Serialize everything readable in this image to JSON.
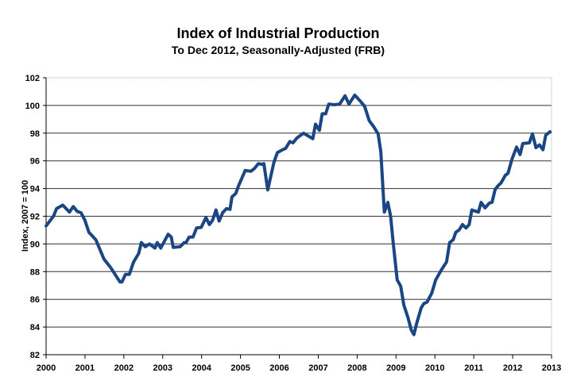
{
  "chart_data": {
    "type": "line",
    "title": "Index of Industrial Production",
    "subtitle": "To Dec 2012, Seasonally-Adjusted (FRB)",
    "xlabel": "",
    "ylabel": "Index, 2007 = 100",
    "xlim": [
      2000,
      2013
    ],
    "ylim": [
      82,
      102
    ],
    "grid": true,
    "line_color": "#1b4684",
    "xticks": [
      "2000",
      "2001",
      "2002",
      "2003",
      "2004",
      "2005",
      "2006",
      "2007",
      "2008",
      "2009",
      "2010",
      "2011",
      "2012",
      "2013"
    ],
    "yticks": [
      "82",
      "84",
      "86",
      "88",
      "90",
      "92",
      "94",
      "96",
      "98",
      "100",
      "102"
    ],
    "series": [
      {
        "name": "Index of Industrial Production",
        "x": [
          2000.0,
          2000.19,
          2000.27,
          2000.43,
          2000.6,
          2000.7,
          2000.8,
          2000.9,
          2001.0,
          2001.1,
          2001.28,
          2001.49,
          2001.66,
          2001.9,
          2001.95,
          2002.04,
          2002.14,
          2002.25,
          2002.38,
          2002.45,
          2002.55,
          2002.66,
          2002.8,
          2002.86,
          2002.95,
          2003.14,
          2003.22,
          2003.27,
          2003.45,
          2003.55,
          2003.6,
          2003.68,
          2003.78,
          2003.87,
          2003.99,
          2004.11,
          2004.2,
          2004.28,
          2004.37,
          2004.45,
          2004.54,
          2004.64,
          2004.73,
          2004.78,
          2004.88,
          2004.95,
          2005.12,
          2005.27,
          2005.36,
          2005.46,
          2005.55,
          2005.6,
          2005.7,
          2005.86,
          2005.95,
          2006.08,
          2006.16,
          2006.27,
          2006.35,
          2006.45,
          2006.62,
          2006.86,
          2006.93,
          2007.03,
          2007.1,
          2007.19,
          2007.27,
          2007.41,
          2007.55,
          2007.69,
          2007.79,
          2007.94,
          2008.07,
          2008.19,
          2008.31,
          2008.43,
          2008.54,
          2008.61,
          2008.7,
          2008.79,
          2008.86,
          2008.93,
          2009.03,
          2009.12,
          2009.2,
          2009.31,
          2009.39,
          2009.46,
          2009.54,
          2009.65,
          2009.72,
          2009.8,
          2009.92,
          2010.02,
          2010.16,
          2010.3,
          2010.38,
          2010.47,
          2010.54,
          2010.62,
          2010.71,
          2010.8,
          2010.88,
          2010.95,
          2011.12,
          2011.19,
          2011.29,
          2011.4,
          2011.47,
          2011.55,
          2011.64,
          2011.7,
          2011.81,
          2011.88,
          2011.98,
          2012.1,
          2012.19,
          2012.26,
          2012.43,
          2012.51,
          2012.6,
          2012.69,
          2012.78,
          2012.85,
          2012.96
        ],
        "y": [
          91.3,
          92.0,
          92.55,
          92.8,
          92.3,
          92.7,
          92.35,
          92.25,
          91.7,
          90.85,
          90.3,
          88.9,
          88.3,
          87.25,
          87.25,
          87.8,
          87.8,
          88.7,
          89.3,
          90.1,
          89.8,
          90.0,
          89.7,
          90.1,
          89.7,
          90.7,
          90.5,
          89.75,
          89.8,
          90.1,
          90.1,
          90.5,
          90.5,
          91.15,
          91.2,
          91.9,
          91.4,
          91.7,
          92.45,
          91.65,
          92.25,
          92.55,
          92.5,
          93.4,
          93.65,
          94.2,
          95.3,
          95.25,
          95.45,
          95.8,
          95.75,
          95.8,
          93.9,
          95.9,
          96.6,
          96.8,
          96.9,
          97.4,
          97.3,
          97.65,
          98.0,
          97.6,
          98.65,
          98.2,
          99.4,
          99.4,
          100.1,
          100.05,
          100.1,
          100.7,
          100.1,
          100.75,
          100.35,
          99.95,
          98.9,
          98.45,
          97.95,
          96.65,
          92.3,
          93.0,
          92.0,
          90.0,
          87.4,
          86.95,
          85.6,
          84.65,
          83.8,
          83.45,
          84.35,
          85.4,
          85.7,
          85.8,
          86.45,
          87.4,
          88.1,
          88.7,
          90.1,
          90.3,
          90.85,
          91.0,
          91.4,
          91.15,
          91.4,
          92.45,
          92.3,
          93.0,
          92.6,
          92.95,
          93.0,
          93.95,
          94.25,
          94.4,
          94.95,
          95.1,
          96.1,
          97.0,
          96.45,
          97.25,
          97.3,
          97.95,
          96.95,
          97.15,
          96.8,
          97.85,
          98.1
        ]
      }
    ]
  }
}
